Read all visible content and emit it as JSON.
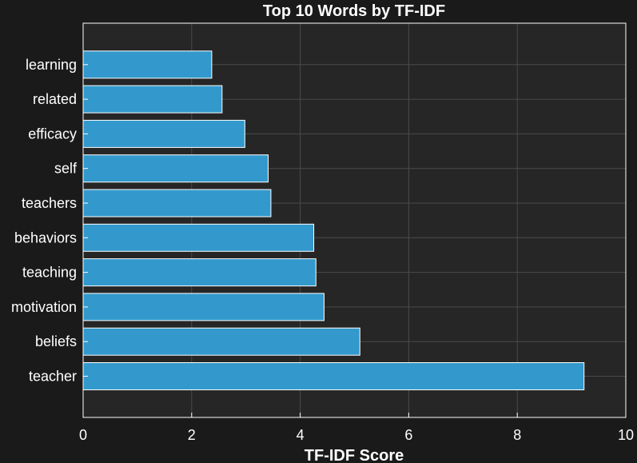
{
  "chart_data": {
    "type": "bar",
    "orientation": "horizontal",
    "title": "Top 10 Words by TF-IDF",
    "xlabel": "TF-IDF Score",
    "ylabel": "",
    "categories": [
      "teacher",
      "beliefs",
      "motivation",
      "teaching",
      "behaviors",
      "teachers",
      "self",
      "efficacy",
      "related",
      "learning"
    ],
    "values": [
      9.23,
      5.1,
      4.44,
      4.29,
      4.25,
      3.46,
      3.41,
      2.98,
      2.56,
      2.37
    ],
    "xlim": [
      0,
      10
    ],
    "xticks": [
      "0",
      "2",
      "4",
      "6",
      "8",
      "10"
    ],
    "grid": true,
    "legend": "none"
  },
  "colors": {
    "background": "#1a1a1a",
    "plot_area": "#262626",
    "bar_fill": "#3399cc",
    "bar_edge": "#ffffff",
    "grid": "#4a4a4a",
    "text": "#ffffff"
  }
}
